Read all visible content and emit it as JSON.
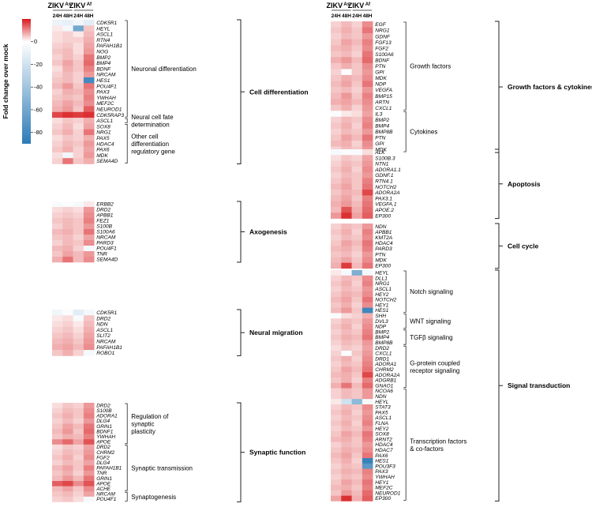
{
  "colorbar": {
    "label": "Fold change over mock",
    "ticks": [
      "0",
      "-20",
      "-40",
      "-60",
      "-80"
    ]
  },
  "colors": {
    "high": "#d7191c",
    "mid": "#ffffff",
    "low": "#2c7bb6",
    "line": "#222222"
  },
  "chart_data": {
    "type": "heatmap",
    "value_scale": {
      "min": -90,
      "max": 20,
      "unit": "fold change over mock"
    },
    "column_groups": [
      {
        "name": "ZIKV",
        "superscript": "As",
        "time_points": [
          "24H",
          "48H"
        ]
      },
      {
        "name": "ZIKV",
        "superscript": "Af",
        "time_points": [
          "24H",
          "48H"
        ]
      }
    ],
    "columns": [
      "ZIKV As 24H",
      "ZIKV As 48H",
      "ZIKV Af 24H",
      "ZIKV Af 48H"
    ],
    "panels": [
      {
        "side": "left",
        "category": "Cell differentiation",
        "genes": [
          "CDK5R1",
          "HEYL",
          "ASCL1",
          "RTN4",
          "PAFAH1B1",
          "NOG",
          "BMP2",
          "BMP4",
          "BDNF",
          "NRCAM",
          "HES1",
          "POU4F1",
          "PAX3",
          "YWHAH",
          "MEF2C",
          "NEUROD1",
          "CDK5RAP3",
          "ASCL1",
          "SOX8",
          "NRG1",
          "PAX5",
          "HDAC4",
          "PAX6",
          "MDK",
          "SEMA4D"
        ],
        "values": [
          [
            -8,
            -10,
            -6,
            -12
          ],
          [
            2,
            -5,
            -60,
            5
          ],
          [
            3,
            4,
            2,
            6
          ],
          [
            3,
            4,
            4,
            7
          ],
          [
            4,
            5,
            3,
            8
          ],
          [
            5,
            6,
            3,
            9
          ],
          [
            4,
            6,
            4,
            12
          ],
          [
            5,
            8,
            5,
            13
          ],
          [
            3,
            7,
            5,
            11
          ],
          [
            4,
            6,
            4,
            9
          ],
          [
            5,
            6,
            4,
            -80
          ],
          [
            6,
            9,
            5,
            12
          ],
          [
            4,
            7,
            6,
            10
          ],
          [
            5,
            6,
            5,
            11
          ],
          [
            6,
            8,
            6,
            10
          ],
          [
            7,
            9,
            5,
            14
          ],
          [
            16,
            18,
            17,
            18
          ],
          [
            3,
            5,
            4,
            7
          ],
          [
            4,
            6,
            3,
            8
          ],
          [
            5,
            7,
            4,
            12
          ],
          [
            3,
            5,
            4,
            7
          ],
          [
            4,
            6,
            5,
            9
          ],
          [
            5,
            7,
            4,
            8
          ],
          [
            3,
            -6,
            4,
            9
          ],
          [
            4,
            12,
            5,
            7
          ]
        ],
        "subgroups": [
          {
            "label": "Neuronal differentiation",
            "rows": [
              0,
              16
            ]
          },
          {
            "label": "Neural cell fate determination",
            "rows": [
              17,
              17
            ]
          },
          {
            "label": "Other cell differentiation regulatory gene",
            "rows": [
              18,
              24
            ]
          }
        ]
      },
      {
        "side": "left",
        "category": "Axogenesis",
        "genes": [
          "ERBB2",
          "DRD2",
          "APBB1",
          "FEZ1",
          "S100B",
          "S100A6",
          "NRCAM",
          "PARD3",
          "POU4F1",
          "TNR",
          "SEMA4D"
        ],
        "values": [
          [
            -3,
            -2,
            -4,
            2
          ],
          [
            3,
            4,
            3,
            9
          ],
          [
            4,
            5,
            4,
            10
          ],
          [
            5,
            6,
            5,
            11
          ],
          [
            4,
            6,
            5,
            9
          ],
          [
            6,
            7,
            5,
            12
          ],
          [
            5,
            6,
            4,
            8
          ],
          [
            4,
            6,
            5,
            10
          ],
          [
            6,
            7,
            4,
            -4
          ],
          [
            5,
            8,
            6,
            9
          ],
          [
            7,
            12,
            6,
            10
          ]
        ],
        "subgroups": []
      },
      {
        "side": "left",
        "category": "Neural migration",
        "genes": [
          "CDK5R1",
          "DRD2",
          "NDN",
          "ASCL1",
          "SLIT2",
          "NRCAM",
          "PAFAH1B1",
          "ROBO1"
        ],
        "values": [
          [
            -6,
            -2,
            -12,
            -5
          ],
          [
            2,
            3,
            -3,
            5
          ],
          [
            3,
            4,
            2,
            6
          ],
          [
            4,
            5,
            3,
            7
          ],
          [
            5,
            6,
            4,
            8
          ],
          [
            6,
            7,
            5,
            9
          ],
          [
            7,
            8,
            6,
            10
          ],
          [
            5,
            7,
            4,
            -4
          ]
        ],
        "subgroups": []
      },
      {
        "side": "left",
        "category": "Synaptic function",
        "genes": [
          "DRD2",
          "S100B",
          "ADORA1",
          "DLG4",
          "GRIN1",
          "BDNF1",
          "YWHAH",
          "APOE",
          "DRD2",
          "CHRM2",
          "FGF2",
          "DLG4",
          "PAFAH1B1",
          "TNR",
          "GRIN1",
          "APOE",
          "ACHE",
          "NRCAM",
          "POU4F1"
        ],
        "values": [
          [
            3,
            5,
            4,
            9
          ],
          [
            4,
            6,
            5,
            10
          ],
          [
            5,
            7,
            5,
            11
          ],
          [
            4,
            6,
            4,
            9
          ],
          [
            5,
            8,
            6,
            12
          ],
          [
            6,
            9,
            5,
            13
          ],
          [
            5,
            7,
            6,
            11
          ],
          [
            10,
            13,
            8,
            15
          ],
          [
            3,
            5,
            4,
            8
          ],
          [
            4,
            6,
            5,
            9
          ],
          [
            5,
            7,
            4,
            10
          ],
          [
            4,
            6,
            5,
            8
          ],
          [
            6,
            8,
            5,
            11
          ],
          [
            5,
            7,
            4,
            9
          ],
          [
            6,
            9,
            6,
            12
          ],
          [
            14,
            16,
            10,
            15
          ],
          [
            6,
            8,
            5,
            10
          ],
          [
            5,
            6,
            4,
            8
          ],
          [
            4,
            5,
            3,
            -4
          ]
        ],
        "subgroups": [
          {
            "label": "Regulation of synaptic plasticity",
            "rows": [
              0,
              7
            ]
          },
          {
            "label": "Synaptic transmission",
            "rows": [
              8,
              16
            ]
          },
          {
            "label": "Synaptogenesis",
            "rows": [
              17,
              18
            ]
          }
        ]
      },
      {
        "side": "right",
        "category": "Growth factors & cytokines",
        "genes": [
          "EGF",
          "NRG1",
          "GDNF",
          "FGF13",
          "FGF2",
          "S100A6",
          "BDNF",
          "PTN",
          "GPI",
          "MDK",
          "NDP",
          "VEGFA",
          "BMP15",
          "ARTN",
          "CXCL1",
          "IL3",
          "BMP2",
          "BMP4",
          "BMP8B",
          "PTN",
          "GPI",
          "MDK"
        ],
        "values": [
          [
            4,
            6,
            4,
            10
          ],
          [
            5,
            7,
            5,
            12
          ],
          [
            4,
            6,
            5,
            9
          ],
          [
            5,
            8,
            6,
            11
          ],
          [
            6,
            7,
            5,
            10
          ],
          [
            5,
            6,
            4,
            12
          ],
          [
            7,
            9,
            6,
            13
          ],
          [
            5,
            7,
            5,
            10
          ],
          [
            4,
            -2,
            5,
            9
          ],
          [
            5,
            7,
            6,
            10
          ],
          [
            6,
            8,
            5,
            12
          ],
          [
            5,
            6,
            4,
            9
          ],
          [
            6,
            9,
            5,
            11
          ],
          [
            7,
            8,
            6,
            10
          ],
          [
            5,
            7,
            4,
            9
          ],
          [
            -2,
            2,
            3,
            8
          ],
          [
            4,
            6,
            5,
            10
          ],
          [
            5,
            7,
            4,
            11
          ],
          [
            4,
            6,
            5,
            9
          ],
          [
            5,
            8,
            6,
            12
          ],
          [
            6,
            7,
            4,
            10
          ],
          [
            4,
            6,
            5,
            9
          ]
        ],
        "subgroups": [
          {
            "label": "Growth factors",
            "rows": [
              0,
              14
            ]
          },
          {
            "label": "Cytokines",
            "rows": [
              15,
              21
            ]
          }
        ]
      },
      {
        "side": "right",
        "category": "Apoptosis",
        "genes": [
          "ALK",
          "S100B.3",
          "NTN1",
          "ADORA1.1",
          "GDNF.1",
          "RTN4.1",
          "NOTCH2",
          "ADORA2A",
          "PAX3.1",
          "VEGFA.1",
          "APOE.2",
          "EP300"
        ],
        "values": [
          [
            -4,
            -2,
            -3,
            3
          ],
          [
            3,
            5,
            4,
            8
          ],
          [
            4,
            6,
            5,
            9
          ],
          [
            5,
            7,
            4,
            10
          ],
          [
            4,
            6,
            5,
            9
          ],
          [
            5,
            7,
            5,
            11
          ],
          [
            6,
            8,
            5,
            12
          ],
          [
            5,
            7,
            6,
            16
          ],
          [
            6,
            8,
            5,
            11
          ],
          [
            7,
            9,
            6,
            12
          ],
          [
            6,
            15,
            7,
            13
          ],
          [
            9,
            18,
            8,
            14
          ]
        ],
        "subgroups": []
      },
      {
        "side": "right",
        "category": "Cell cycle",
        "genes": [
          "NDN",
          "APBB1",
          "KMT2A",
          "HDAC4",
          "PARD3",
          "PTN",
          "MDK",
          "EP300"
        ],
        "values": [
          [
            4,
            6,
            5,
            9
          ],
          [
            5,
            7,
            4,
            11
          ],
          [
            4,
            6,
            5,
            10
          ],
          [
            5,
            8,
            6,
            12
          ],
          [
            6,
            7,
            5,
            11
          ],
          [
            5,
            6,
            4,
            9
          ],
          [
            6,
            8,
            5,
            10
          ],
          [
            7,
            17,
            6,
            12
          ]
        ],
        "subgroups": []
      },
      {
        "side": "right",
        "category": "Signal transduction",
        "genes": [
          "HEYL",
          "DLL1",
          "NRG1",
          "ASCL1",
          "HEY2",
          "NOTCH2",
          "HEY1",
          "HES1",
          "SHH",
          "DVL3",
          "NDP",
          "BMP2",
          "BMP4",
          "BMP8B",
          "DRD2",
          "CXCL1",
          "DRD1",
          "ADORA1",
          "CHRM2",
          "ADORA2A",
          "ADGRB1",
          "GNAO1",
          "NCOA6",
          "NDN",
          "HEYL",
          "STAT3",
          "PAX5",
          "ASCL1",
          "FLNA",
          "HEY2",
          "SOX8",
          "ARNT2",
          "HDAC4",
          "HDAC7",
          "PAX6",
          "HES1",
          "POU3F3",
          "PAX3",
          "YWHAH",
          "HEY1",
          "MEF2C",
          "NEUROD1",
          "EP300"
        ],
        "values": [
          [
            2,
            -4,
            -55,
            -5
          ],
          [
            4,
            6,
            5,
            10
          ],
          [
            5,
            7,
            4,
            11
          ],
          [
            4,
            6,
            5,
            9
          ],
          [
            5,
            7,
            6,
            10
          ],
          [
            6,
            8,
            5,
            12
          ],
          [
            5,
            7,
            4,
            10
          ],
          [
            6,
            9,
            5,
            -82
          ],
          [
            -2,
            3,
            4,
            7
          ],
          [
            4,
            6,
            5,
            9
          ],
          [
            5,
            7,
            4,
            10
          ],
          [
            4,
            6,
            5,
            11
          ],
          [
            5,
            7,
            6,
            12
          ],
          [
            4,
            6,
            5,
            9
          ],
          [
            3,
            5,
            4,
            8
          ],
          [
            4,
            -2,
            5,
            9
          ],
          [
            5,
            7,
            4,
            10
          ],
          [
            4,
            6,
            5,
            11
          ],
          [
            5,
            8,
            6,
            12
          ],
          [
            6,
            7,
            5,
            16
          ],
          [
            5,
            7,
            4,
            11
          ],
          [
            7,
            12,
            6,
            13
          ],
          [
            4,
            6,
            5,
            9
          ],
          [
            4,
            6,
            5,
            9
          ],
          [
            2,
            -20,
            -48,
            -4
          ],
          [
            4,
            6,
            5,
            10
          ],
          [
            5,
            7,
            4,
            9
          ],
          [
            4,
            6,
            5,
            10
          ],
          [
            5,
            7,
            4,
            11
          ],
          [
            4,
            6,
            5,
            9
          ],
          [
            5,
            8,
            6,
            12
          ],
          [
            6,
            7,
            5,
            11
          ],
          [
            4,
            6,
            5,
            9
          ],
          [
            5,
            7,
            6,
            10
          ],
          [
            6,
            8,
            5,
            12
          ],
          [
            5,
            7,
            4,
            -85
          ],
          [
            4,
            6,
            5,
            -70
          ],
          [
            5,
            7,
            6,
            11
          ],
          [
            4,
            6,
            5,
            10
          ],
          [
            5,
            8,
            6,
            12
          ],
          [
            6,
            7,
            5,
            11
          ],
          [
            5,
            9,
            6,
            13
          ],
          [
            8,
            18,
            7,
            14
          ]
        ],
        "subgroups": [
          {
            "label": "Notch signaling",
            "rows": [
              0,
              7
            ]
          },
          {
            "label": "WNT signaling",
            "rows": [
              8,
              10
            ]
          },
          {
            "label": "TGFβ signaling",
            "rows": [
              11,
              13
            ]
          },
          {
            "label": "G-protein coupled receptor signaling",
            "rows": [
              14,
              21
            ]
          },
          {
            "label": "Transcription factors & co-factors",
            "rows": [
              22,
              42
            ]
          }
        ]
      }
    ]
  }
}
